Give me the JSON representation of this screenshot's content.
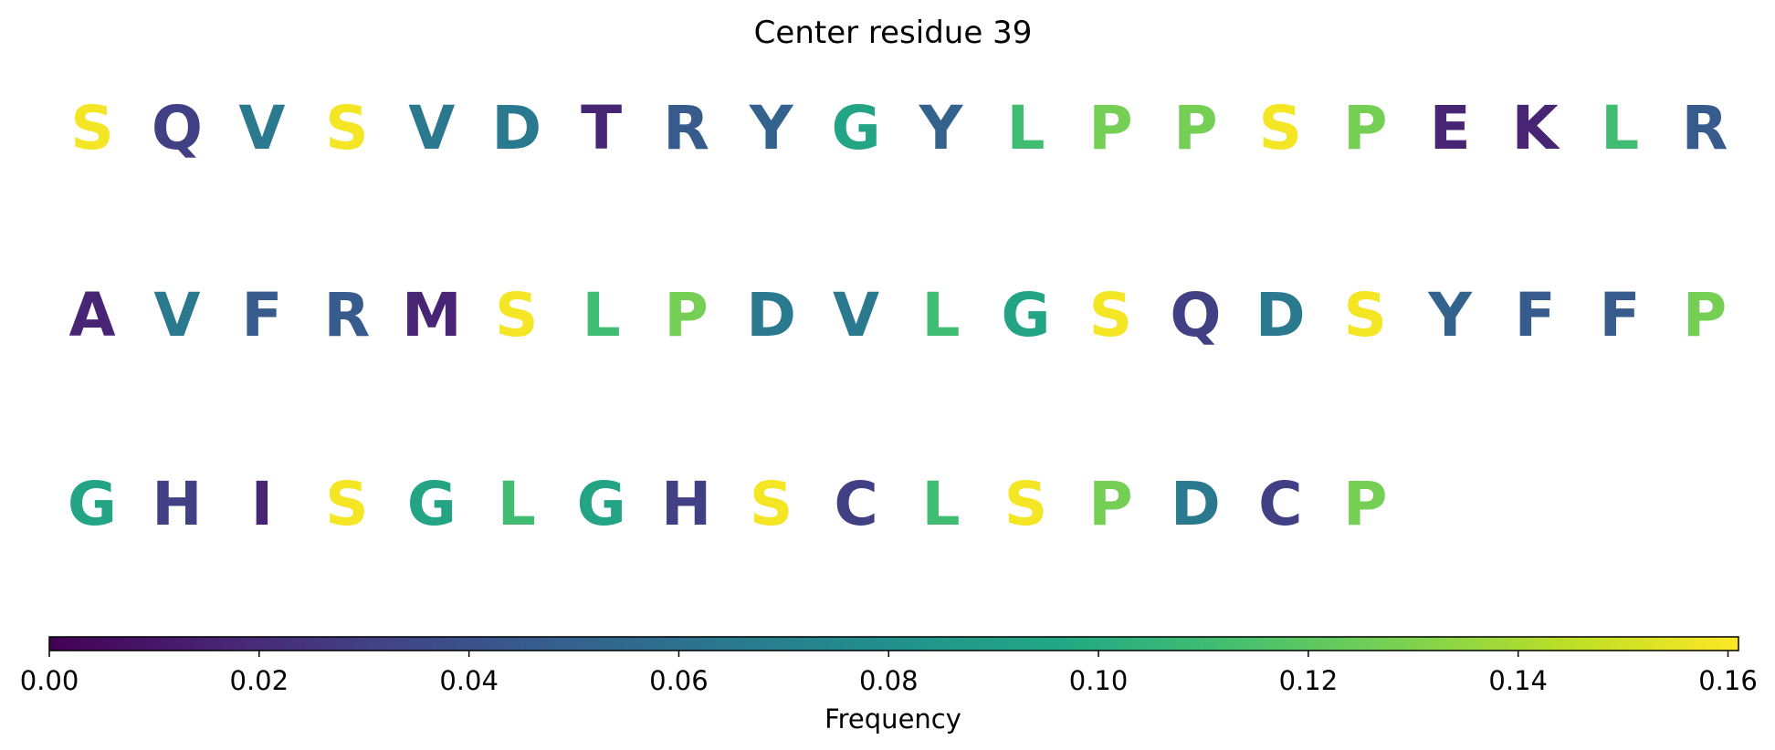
{
  "chart_data": {
    "type": "heatmap",
    "title": "Center residue 39",
    "rows": [
      {
        "residues": [
          "S",
          "Q",
          "V",
          "S",
          "V",
          "D",
          "T",
          "R",
          "Y",
          "G",
          "Y",
          "L",
          "P",
          "P",
          "S",
          "P",
          "E",
          "K",
          "L",
          "R"
        ],
        "values": [
          0.159,
          0.03,
          0.065,
          0.159,
          0.065,
          0.065,
          0.016,
          0.046,
          0.051,
          0.094,
          0.051,
          0.111,
          0.127,
          0.127,
          0.159,
          0.127,
          0.016,
          0.016,
          0.111,
          0.046
        ]
      },
      {
        "residues": [
          "A",
          "V",
          "F",
          "R",
          "M",
          "S",
          "L",
          "P",
          "D",
          "V",
          "L",
          "G",
          "S",
          "Q",
          "D",
          "S",
          "Y",
          "F",
          "F",
          "P"
        ],
        "values": [
          0.016,
          0.065,
          0.046,
          0.046,
          0.016,
          0.159,
          0.111,
          0.127,
          0.065,
          0.065,
          0.111,
          0.094,
          0.159,
          0.03,
          0.065,
          0.159,
          0.051,
          0.046,
          0.046,
          0.127
        ]
      },
      {
        "residues": [
          "G",
          "H",
          "I",
          "S",
          "G",
          "L",
          "G",
          "H",
          "S",
          "C",
          "L",
          "S",
          "P",
          "D",
          "C",
          "P"
        ],
        "values": [
          0.094,
          0.03,
          0.016,
          0.159,
          0.094,
          0.111,
          0.094,
          0.03,
          0.159,
          0.03,
          0.111,
          0.159,
          0.127,
          0.065,
          0.03,
          0.127
        ]
      }
    ],
    "colorbar": {
      "colormap": "viridis",
      "min": 0.0,
      "max": 0.161,
      "ticks": [
        0.0,
        0.02,
        0.04,
        0.06,
        0.08,
        0.1,
        0.12,
        0.14,
        0.16
      ],
      "tick_labels": [
        "0.00",
        "0.02",
        "0.04",
        "0.06",
        "0.08",
        "0.10",
        "0.12",
        "0.14",
        "0.16"
      ],
      "label": "Frequency"
    }
  }
}
